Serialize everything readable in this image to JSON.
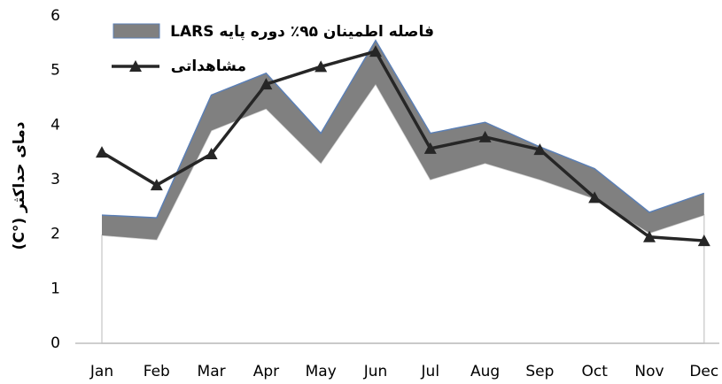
{
  "chart_data": {
    "type": "band-line",
    "y_label": "دمای حداکثر (°C)",
    "categories": [
      "Jan",
      "Feb",
      "Mar",
      "Apr",
      "May",
      "Jun",
      "Jul",
      "Aug",
      "Sep",
      "Oct",
      "Nov",
      "Dec"
    ],
    "ylim": [
      0,
      6
    ],
    "yticks": [
      0,
      1,
      2,
      3,
      4,
      5,
      6
    ],
    "series": [
      {
        "name": "فاصله اطمینان ۹۵٪ دوره پایه LARS",
        "kind": "band",
        "color": "#808080",
        "edge_color": "#5b7fb5",
        "lower": [
          1.98,
          1.9,
          3.9,
          4.3,
          3.3,
          4.75,
          3.0,
          3.3,
          3.0,
          2.65,
          2.02,
          2.35
        ],
        "upper": [
          2.35,
          2.3,
          4.55,
          4.95,
          3.85,
          5.55,
          3.85,
          4.05,
          3.6,
          3.2,
          2.4,
          2.75
        ]
      },
      {
        "name": "مشاهداتی",
        "kind": "line",
        "color": "#262626",
        "values": [
          3.5,
          2.9,
          3.47,
          4.75,
          5.07,
          5.35,
          3.57,
          3.78,
          3.55,
          2.67,
          1.95,
          1.88
        ]
      }
    ]
  }
}
